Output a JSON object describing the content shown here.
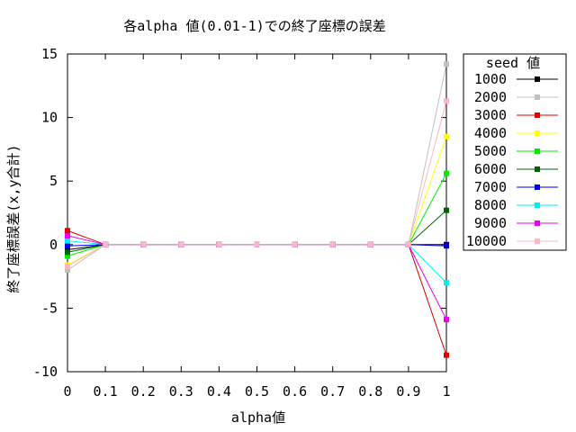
{
  "chart_data": {
    "type": "line",
    "title": "各alpha 値(0.01-1)での終了座標の誤差",
    "xlabel": "alpha値",
    "ylabel": "終了座標誤差(x,y合計)",
    "xlim": [
      0,
      1
    ],
    "ylim": [
      -10,
      15
    ],
    "x": [
      0,
      0.1,
      0.2,
      0.3,
      0.4,
      0.5,
      0.6,
      0.7,
      0.8,
      0.9,
      1
    ],
    "x_tick_labels": [
      "0",
      "0.1",
      "0.2",
      "0.3",
      "0.4",
      "0.5",
      "0.6",
      "0.7",
      "0.8",
      "0.9",
      "1"
    ],
    "y_ticks": [
      -10,
      -5,
      0,
      5,
      10,
      15
    ],
    "y_tick_labels": [
      "-10",
      "-5",
      "0",
      "5",
      "10",
      "15"
    ],
    "grid": false,
    "legend_title": "seed 値",
    "legend_placement": "outside-right",
    "series": [
      {
        "name": "1000",
        "color": "#000000",
        "values": [
          -0.4,
          0,
          0,
          0,
          0,
          0,
          0,
          0,
          0,
          0,
          0
        ]
      },
      {
        "name": "2000",
        "color": "#c0c0c0",
        "values": [
          -2.0,
          0,
          0,
          0,
          0,
          0,
          0,
          0,
          0,
          0,
          14.2
        ]
      },
      {
        "name": "3000",
        "color": "#e00000",
        "values": [
          1.1,
          0,
          0,
          0,
          0,
          0,
          0,
          0,
          0,
          0,
          -8.7
        ]
      },
      {
        "name": "4000",
        "color": "#ffff00",
        "values": [
          -1.6,
          0,
          0,
          0,
          0,
          0,
          0,
          0,
          0,
          0,
          8.5
        ]
      },
      {
        "name": "5000",
        "color": "#00ee00",
        "values": [
          -0.9,
          0,
          0,
          0,
          0,
          0,
          0,
          0,
          0,
          0,
          5.6
        ]
      },
      {
        "name": "6000",
        "color": "#006400",
        "values": [
          -0.6,
          0,
          0,
          0,
          0,
          0,
          0,
          0,
          0,
          0,
          2.7
        ]
      },
      {
        "name": "7000",
        "color": "#0000ee",
        "values": [
          -0.1,
          0,
          0,
          0,
          0,
          0,
          0,
          0,
          0,
          0,
          -0.1
        ]
      },
      {
        "name": "8000",
        "color": "#00eeee",
        "values": [
          0.3,
          0,
          0,
          0,
          0,
          0,
          0,
          0,
          0,
          0,
          -3.0
        ]
      },
      {
        "name": "9000",
        "color": "#ee00ee",
        "values": [
          0.7,
          0,
          0,
          0,
          0,
          0,
          0,
          0,
          0,
          0,
          -5.9
        ]
      },
      {
        "name": "10000",
        "color": "#ffb6c1",
        "values": [
          -1.7,
          0,
          0,
          0,
          0,
          0,
          0,
          0,
          0,
          0,
          11.3
        ]
      }
    ]
  }
}
